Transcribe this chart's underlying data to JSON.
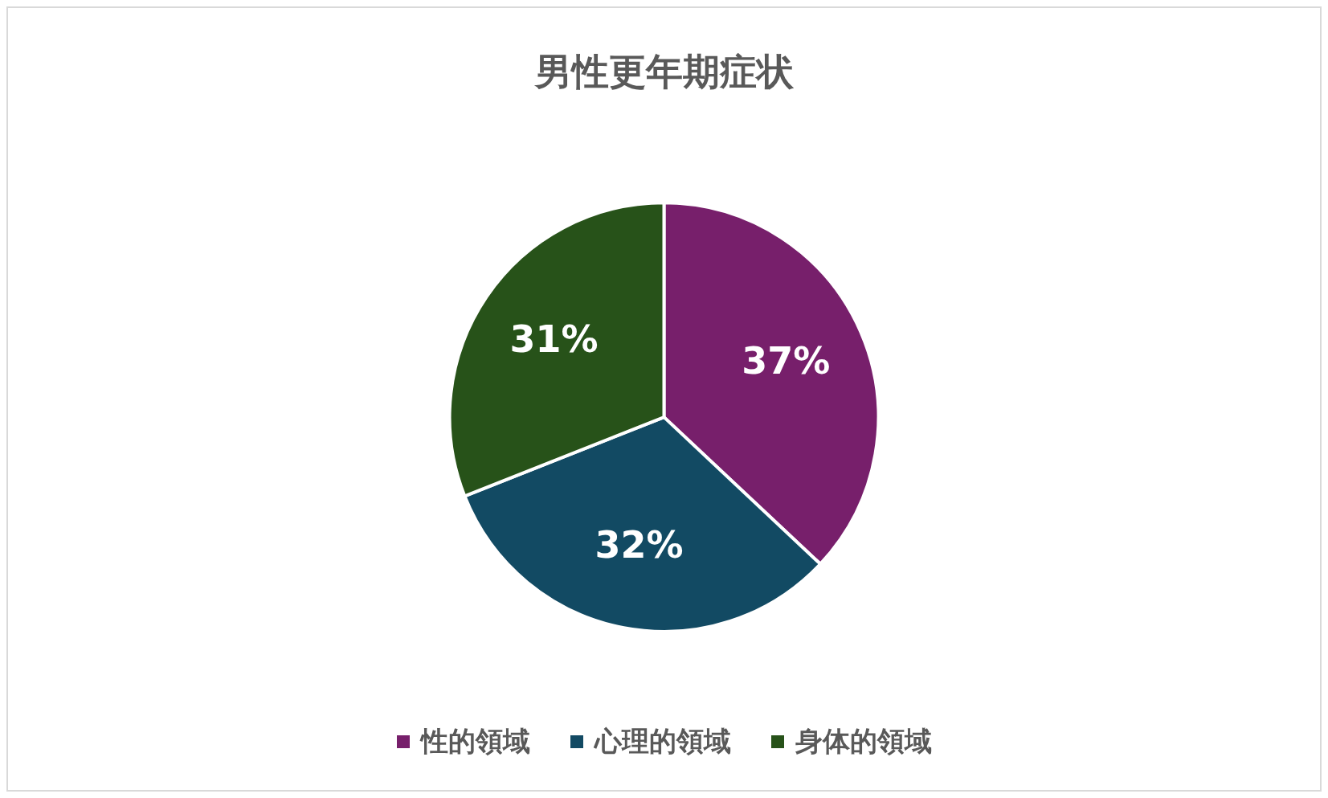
{
  "chart_data": {
    "type": "pie",
    "title": "男性更年期症状",
    "categories": [
      "性的領域",
      "心理的領域",
      "身体的領域"
    ],
    "values": [
      37,
      32,
      31
    ],
    "value_labels": [
      "37%",
      "32%",
      "31%"
    ],
    "colors": [
      "#771f6b",
      "#124a63",
      "#275219"
    ],
    "legend": "bottom"
  }
}
